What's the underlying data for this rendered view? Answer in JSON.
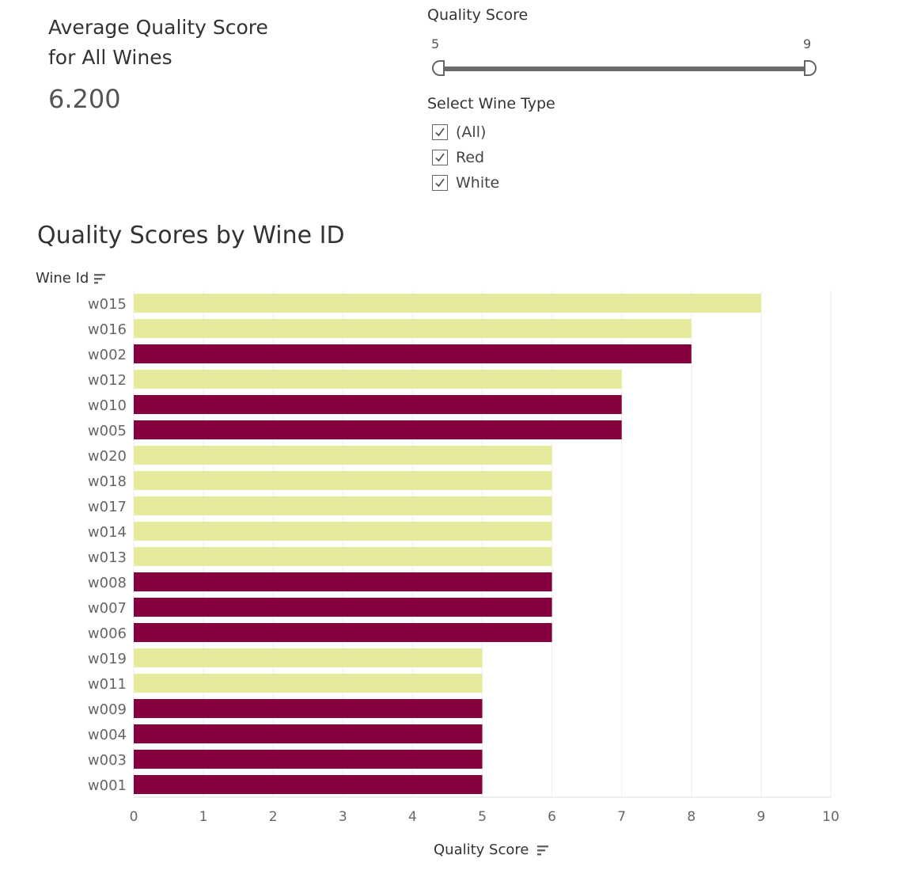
{
  "kpi": {
    "title_line1": "Average Quality Score",
    "title_line2": "for All Wines",
    "value": "6.200"
  },
  "slider": {
    "title": "Quality Score",
    "min_label": "5",
    "max_label": "9",
    "min_value": 5,
    "max_value": 9
  },
  "filter": {
    "title": "Select Wine Type",
    "options": [
      {
        "label": "(All)",
        "checked": true
      },
      {
        "label": "Red",
        "checked": true
      },
      {
        "label": "White",
        "checked": true
      }
    ]
  },
  "colors": {
    "red": "#85003c",
    "white": "#e6ea9b",
    "grid": "#eeeeee",
    "axis_text": "#666666"
  },
  "chart_data": {
    "type": "bar",
    "orientation": "horizontal",
    "title": "Quality Scores by Wine ID",
    "ylabel": "Wine Id",
    "xlabel": "Quality Score",
    "xlim": [
      0,
      10
    ],
    "xticks": [
      "0",
      "1",
      "2",
      "3",
      "4",
      "5",
      "6",
      "7",
      "8",
      "9",
      "10"
    ],
    "grid": true,
    "categories": [
      "w015",
      "w016",
      "w002",
      "w012",
      "w010",
      "w005",
      "w020",
      "w018",
      "w017",
      "w014",
      "w013",
      "w008",
      "w007",
      "w006",
      "w019",
      "w011",
      "w009",
      "w004",
      "w003",
      "w001"
    ],
    "values": [
      9,
      8,
      8,
      7,
      7,
      7,
      6,
      6,
      6,
      6,
      6,
      6,
      6,
      6,
      5,
      5,
      5,
      5,
      5,
      5
    ],
    "wine_type": [
      "White",
      "White",
      "Red",
      "White",
      "Red",
      "Red",
      "White",
      "White",
      "White",
      "White",
      "White",
      "Red",
      "Red",
      "Red",
      "White",
      "White",
      "Red",
      "Red",
      "Red",
      "Red"
    ]
  }
}
